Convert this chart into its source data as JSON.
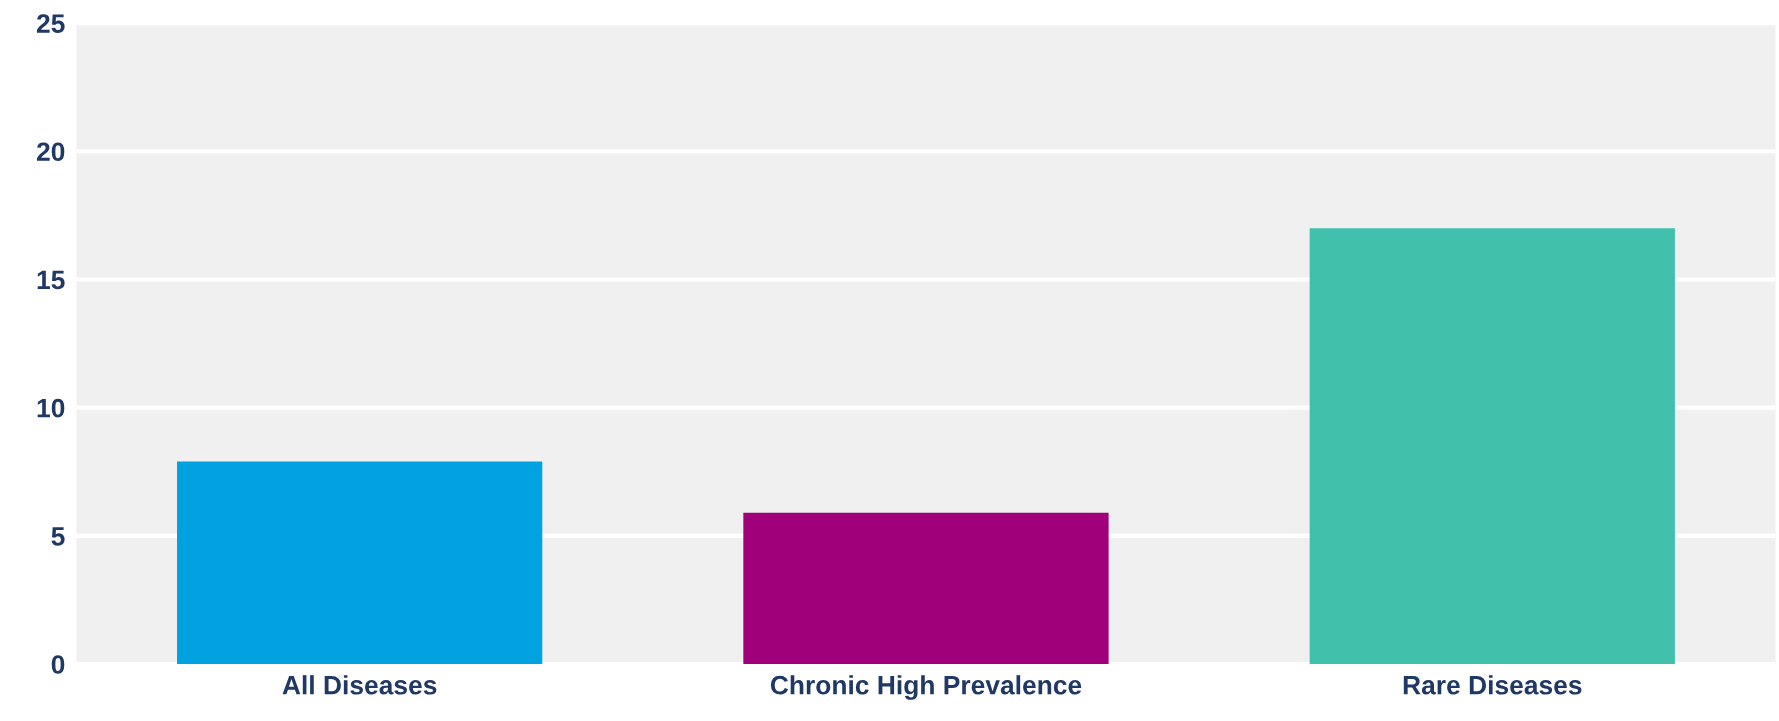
{
  "chart_data": {
    "type": "bar",
    "categories": [
      "All Diseases",
      "Chronic High Prevalence",
      "Rare Diseases"
    ],
    "values": [
      7.9,
      5.9,
      17.0
    ],
    "colors": [
      "#00a3e0",
      "#a0007a",
      "#41c1ab"
    ],
    "ylim": [
      0,
      25
    ],
    "yticks": [
      0,
      5,
      10,
      15,
      20,
      25
    ],
    "grid": "y"
  }
}
